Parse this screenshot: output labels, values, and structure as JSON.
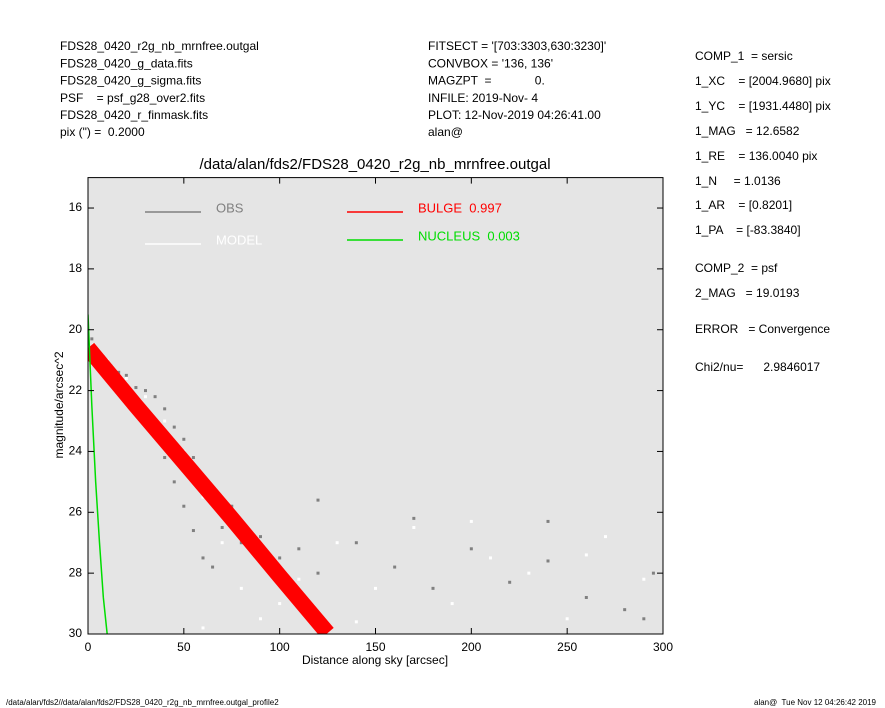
{
  "header_left": [
    "FDS28_0420_r2g_nb_mrnfree.outgal",
    "FDS28_0420_g_data.fits",
    "FDS28_0420_g_sigma.fits",
    "PSF    = psf_g28_over2.fits",
    "FDS28_0420_r_finmask.fits",
    "pix (\") =  0.2000"
  ],
  "header_middle": [
    "FITSECT = '[703:3303,630:3230]'",
    "CONVBOX = '136, 136'",
    "MAGZPT  =             0.",
    "INFILE: 2019-Nov- 4",
    "PLOT: 12-Nov-2019 04:26:41.00",
    "alan@"
  ],
  "parameters": [
    "COMP_1  = sersic",
    "1_XC    = [2004.9680] pix",
    "1_YC    = [1931.4480] pix",
    "1_MAG   = 12.6582",
    "1_RE    = 136.0040 pix",
    "1_N     = 1.0136",
    "1_AR    = [0.8201]",
    "1_PA    = [-83.3840]",
    "COMP_2  = psf",
    "2_MAG   = 19.0193",
    "ERROR   = Convergence",
    "Chi2/nu=      2.9846017"
  ],
  "footer_left": "/data/alan/fds2//data/alan/fds2/FDS28_0420_r2g_nb_mrnfree.outgal_profile2",
  "footer_right": "alan@  Tue Nov 12 04:26:42 2019",
  "chart_data": {
    "type": "scatter",
    "title": "/data/alan/fds2/FDS28_0420_r2g_nb_mrnfree.outgal",
    "x_label": "Distance along sky [arcsec]",
    "y_label": "magnitude/arcsec^2",
    "xlim": [
      0,
      300
    ],
    "ylim": [
      30,
      15
    ],
    "xticks": [
      0,
      50,
      100,
      150,
      200,
      250,
      300
    ],
    "yticks": [
      16,
      18,
      20,
      22,
      24,
      26,
      28,
      30
    ],
    "background": "#e5e5e5",
    "series": [
      {
        "name": "OBS",
        "color": "#808080",
        "mode": "points",
        "x": [
          2,
          5,
          8,
          12,
          16,
          20,
          25,
          30,
          35,
          40,
          45,
          50,
          55,
          35,
          40,
          45,
          50,
          55,
          60,
          65,
          70,
          80,
          90,
          100,
          110,
          120,
          140,
          160,
          180,
          200,
          220,
          240,
          260,
          280,
          295,
          120,
          170,
          240,
          75,
          290
        ],
        "values": [
          20.3,
          20.7,
          20.9,
          21.2,
          21.4,
          21.5,
          21.9,
          22.0,
          22.2,
          22.6,
          23.2,
          23.6,
          24.2,
          23.4,
          24.2,
          25.0,
          25.8,
          26.6,
          27.5,
          27.8,
          26.5,
          27.0,
          26.8,
          27.5,
          27.2,
          28.0,
          27.0,
          27.8,
          28.5,
          27.2,
          28.3,
          27.6,
          28.8,
          29.2,
          28.0,
          25.6,
          26.2,
          26.3,
          25.8,
          29.5
        ]
      },
      {
        "name": "MODEL",
        "color": "#ffffff",
        "mode": "points",
        "x": [
          3,
          10,
          20,
          30,
          40,
          50,
          60,
          70,
          80,
          90,
          100,
          130,
          150,
          170,
          190,
          210,
          230,
          250,
          270,
          290,
          140,
          200,
          260,
          110,
          60
        ],
        "values": [
          20.5,
          21.0,
          21.6,
          22.2,
          23.0,
          24.0,
          25.5,
          27.0,
          28.5,
          29.5,
          29.0,
          27.0,
          28.5,
          26.5,
          29.0,
          27.5,
          28.0,
          29.5,
          26.8,
          28.2,
          29.6,
          26.3,
          27.4,
          28.2,
          29.8
        ]
      },
      {
        "name": "BULGE  0.997",
        "color": "#ff0000",
        "mode": "band",
        "x": [
          0,
          25,
          50,
          75,
          100,
          125
        ],
        "values": [
          20.6,
          22.5,
          24.35,
          26.2,
          28.1,
          29.97
        ]
      },
      {
        "name": "NUCLEUS  0.003",
        "color": "#00dd00",
        "mode": "line",
        "x": [
          0,
          1,
          2,
          4,
          6,
          8,
          10
        ],
        "values": [
          19.5,
          21,
          22.5,
          25,
          27,
          28.8,
          30
        ]
      }
    ]
  }
}
